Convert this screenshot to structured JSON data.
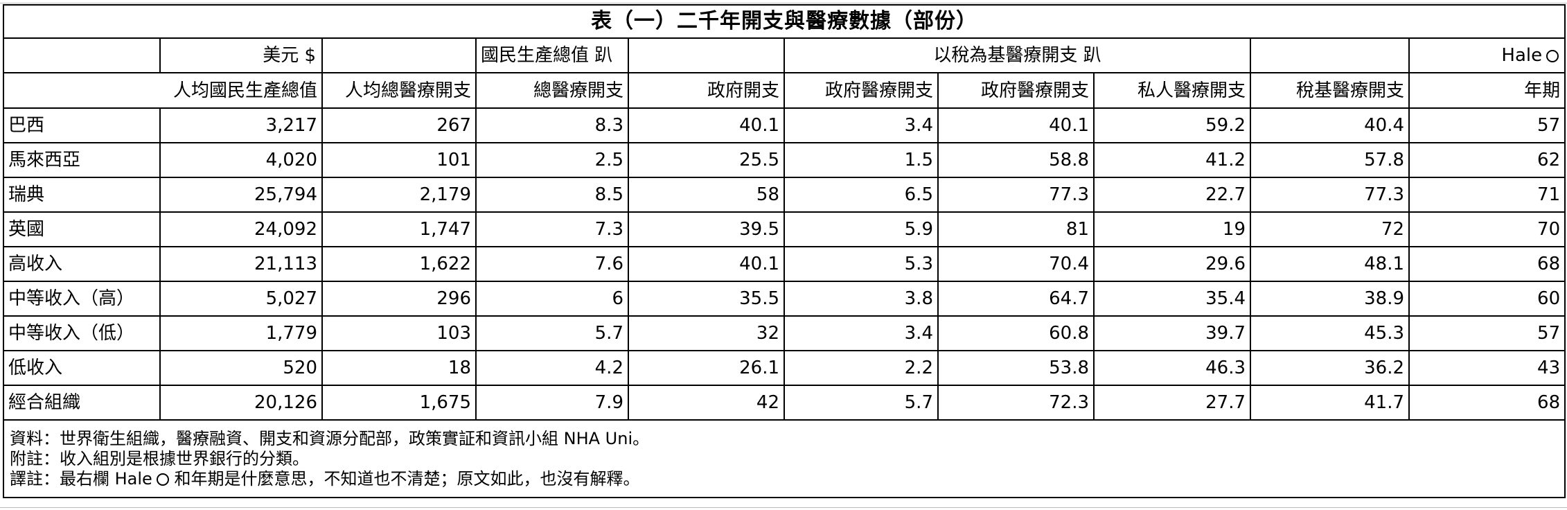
{
  "title": "表（一）二千年開支與醫療數據（部份）",
  "header_top": {
    "usd": "美元 $",
    "gnp_share": "國民生產總值 趴",
    "tax_group": "以稅為基醫療開支 趴",
    "hale": "Hale"
  },
  "header_sub": [
    "人均國民生產總值",
    "人均總醫療開支",
    "總醫療開支",
    "政府開支",
    "政府醫療開支",
    "政府醫療開支",
    "私人醫療開支",
    "稅基醫療開支",
    "年期"
  ],
  "rows": [
    {
      "label": "巴西",
      "values": [
        "3,217",
        "267",
        "8.3",
        "40.1",
        "3.4",
        "40.1",
        "59.2",
        "40.4",
        "57"
      ]
    },
    {
      "label": "馬來西亞",
      "values": [
        "4,020",
        "101",
        "2.5",
        "25.5",
        "1.5",
        "58.8",
        "41.2",
        "57.8",
        "62"
      ]
    },
    {
      "label": "瑞典",
      "values": [
        "25,794",
        "2,179",
        "8.5",
        "58",
        "6.5",
        "77.3",
        "22.7",
        "77.3",
        "71"
      ]
    },
    {
      "label": "英國",
      "values": [
        "24,092",
        "1,747",
        "7.3",
        "39.5",
        "5.9",
        "81",
        "19",
        "72",
        "70"
      ]
    },
    {
      "label": "高收入",
      "values": [
        "21,113",
        "1,622",
        "7.6",
        "40.1",
        "5.3",
        "70.4",
        "29.6",
        "48.1",
        "68"
      ]
    },
    {
      "label": "中等收入（高）",
      "values": [
        "5,027",
        "296",
        "6",
        "35.5",
        "3.8",
        "64.7",
        "35.4",
        "38.9",
        "60"
      ]
    },
    {
      "label": "中等收入（低）",
      "values": [
        "1,779",
        "103",
        "5.7",
        "32",
        "3.4",
        "60.8",
        "39.7",
        "45.3",
        "57"
      ]
    },
    {
      "label": "低收入",
      "values": [
        "520",
        "18",
        "4.2",
        "26.1",
        "2.2",
        "53.8",
        "46.3",
        "36.2",
        "43"
      ]
    },
    {
      "label": "經合組織",
      "values": [
        "20,126",
        "1,675",
        "7.9",
        "42",
        "5.7",
        "72.3",
        "27.7",
        "41.7",
        "68"
      ]
    }
  ],
  "notes": {
    "source": "資料：世界衛生組織，醫療融資、開支和資源分配部，政策實証和資訊小組 NHA Uni。",
    "note": "附註：收入組別是根據世界銀行的分類。",
    "translator_prefix": "譯註：最右欄 Hale",
    "translator_suffix": "和年期是什麼意思，不知道也不清楚；原文如此，也沒有解釋。"
  },
  "icons": {
    "hale_marker": "circle-icon"
  }
}
